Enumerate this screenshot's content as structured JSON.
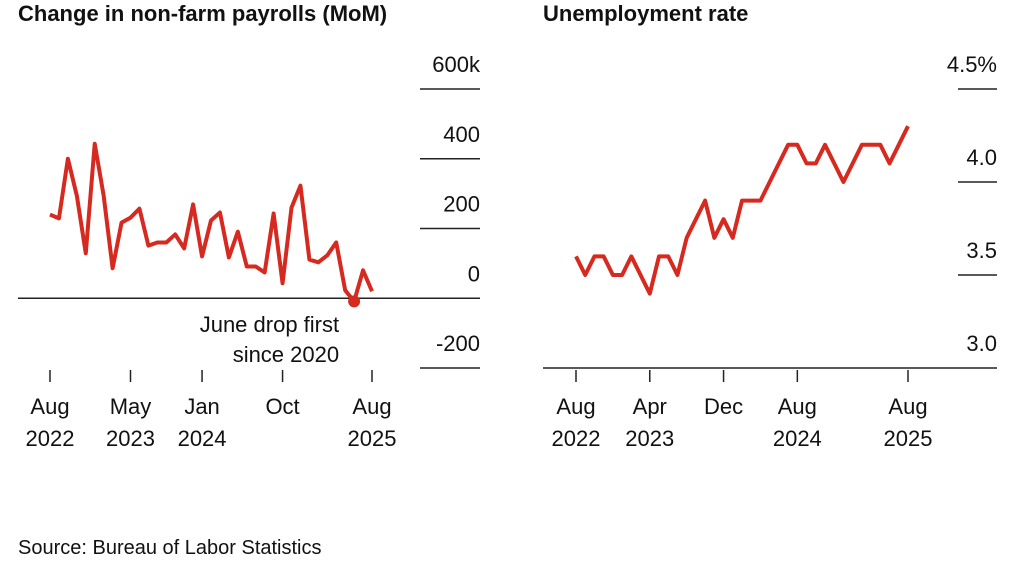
{
  "chart_data": [
    {
      "type": "line",
      "title": "Change in non-farm payrolls (MoM)",
      "x": [
        "2022-08",
        "2022-09",
        "2022-10",
        "2022-11",
        "2022-12",
        "2023-01",
        "2023-02",
        "2023-03",
        "2023-04",
        "2023-05",
        "2023-06",
        "2023-07",
        "2023-08",
        "2023-09",
        "2023-10",
        "2023-11",
        "2023-12",
        "2024-01",
        "2024-02",
        "2024-03",
        "2024-04",
        "2024-05",
        "2024-06",
        "2024-07",
        "2024-08",
        "2024-09",
        "2024-10",
        "2024-11",
        "2024-12",
        "2025-01",
        "2025-02",
        "2025-03",
        "2025-04",
        "2025-05",
        "2025-06",
        "2025-07",
        "2025-08"
      ],
      "values": [
        240,
        229,
        400,
        294,
        129,
        443,
        294,
        86,
        217,
        231,
        257,
        151,
        160,
        160,
        183,
        143,
        269,
        120,
        223,
        246,
        117,
        191,
        91,
        91,
        74,
        243,
        43,
        260,
        323,
        111,
        103,
        123,
        160,
        23,
        -9,
        80,
        20
      ],
      "color": "#d62a20",
      "xlim": [
        "2022-08",
        "2025-08"
      ],
      "xticks": [
        {
          "value": "2022-08",
          "label": "Aug 2022"
        },
        {
          "value": "2023-05",
          "label": "May 2023"
        },
        {
          "value": "2024-01",
          "label": "Jan 2024"
        },
        {
          "value": "2024-10",
          "label": "Oct"
        },
        {
          "value": "2025-08",
          "label": "Aug 2025"
        }
      ],
      "ylim": [
        -200,
        600
      ],
      "yticks": [
        {
          "value": 600,
          "label": "600k"
        },
        400,
        200,
        0,
        -200
      ],
      "annotations": [
        {
          "text": "June drop first since 2020",
          "x": "2025-06"
        }
      ]
    },
    {
      "type": "line",
      "title": "Unemployment rate",
      "x": [
        "2022-08",
        "2022-09",
        "2022-10",
        "2022-11",
        "2022-12",
        "2023-01",
        "2023-02",
        "2023-03",
        "2023-04",
        "2023-05",
        "2023-06",
        "2023-07",
        "2023-08",
        "2023-09",
        "2023-10",
        "2023-11",
        "2023-12",
        "2024-01",
        "2024-02",
        "2024-03",
        "2024-04",
        "2024-05",
        "2024-06",
        "2024-07",
        "2024-08",
        "2024-09",
        "2024-10",
        "2024-11",
        "2024-12",
        "2025-01",
        "2025-02",
        "2025-03",
        "2025-04",
        "2025-05",
        "2025-06",
        "2025-07",
        "2025-08"
      ],
      "values": [
        3.6,
        3.5,
        3.6,
        3.6,
        3.5,
        3.5,
        3.6,
        3.5,
        3.4,
        3.6,
        3.6,
        3.5,
        3.7,
        3.8,
        3.9,
        3.7,
        3.8,
        3.7,
        3.9,
        3.9,
        3.9,
        4.0,
        4.1,
        4.2,
        4.2,
        4.1,
        4.1,
        4.2,
        4.1,
        4.0,
        4.1,
        4.2,
        4.2,
        4.2,
        4.1,
        4.2,
        4.3
      ],
      "color": "#d62a20",
      "xlim": [
        "2022-08",
        "2025-08"
      ],
      "xticks": [
        {
          "value": "2022-08",
          "label": "Aug 2022"
        },
        {
          "value": "2023-04",
          "label": "Apr 2023"
        },
        {
          "value": "2023-12",
          "label": "Dec"
        },
        {
          "value": "2024-08",
          "label": "Aug 2024"
        },
        {
          "value": "2025-08",
          "label": "Aug 2025"
        }
      ],
      "ylim": [
        3.0,
        4.5
      ],
      "yticks": [
        {
          "value": 4.5,
          "label": "4.5%"
        },
        {
          "value": 4.0,
          "label": "4.0"
        },
        3.5,
        {
          "value": 3.0,
          "label": "3.0"
        }
      ]
    }
  ],
  "source": "Source: Bureau of Labor Statistics"
}
